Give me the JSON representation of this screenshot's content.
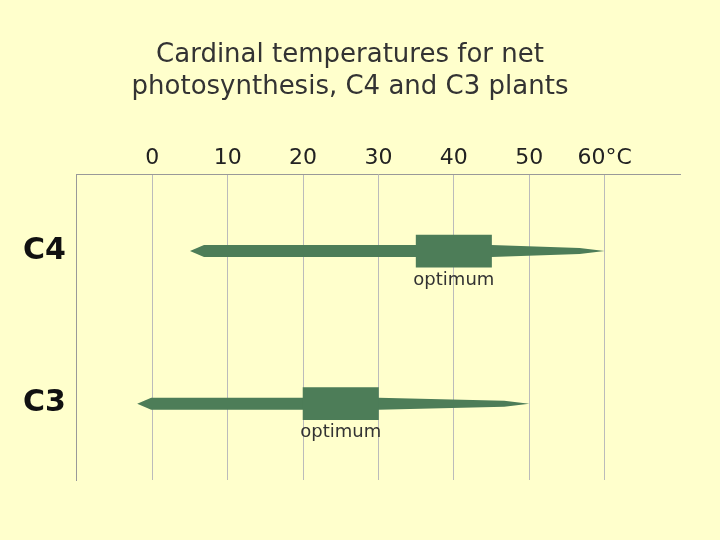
{
  "chart_data": {
    "type": "bar",
    "orientation": "horizontal",
    "title": [
      "Cardinal temperatures for net",
      "photosynthesis, C4 and C3 plants"
    ],
    "categories": [
      "C4",
      "C3"
    ],
    "range": [
      [
        5,
        60
      ],
      [
        -2,
        50
      ]
    ],
    "optimum": [
      [
        35,
        45
      ],
      [
        20,
        30
      ]
    ],
    "annotation": "optimum",
    "color": "#4d7d58",
    "xlim": [
      -10,
      70
    ],
    "xticks": [
      0,
      10,
      20,
      30,
      40,
      50,
      {
        "value": 60,
        "label": "60°C"
      }
    ],
    "grid": true
  }
}
